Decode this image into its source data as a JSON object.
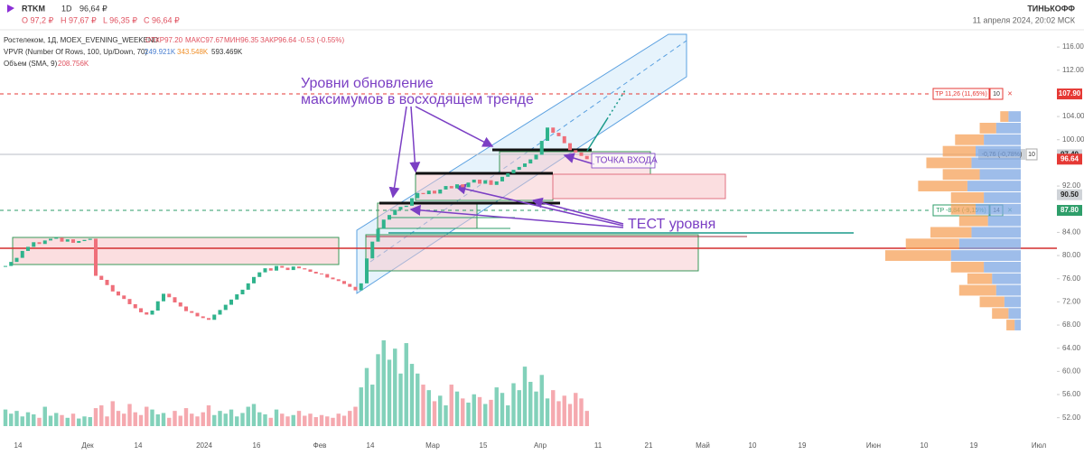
{
  "header": {
    "ticker": "RTKM",
    "interval": "1D",
    "price": "96,64 ₽",
    "open": "О 97,2 ₽",
    "high": "H 97,67 ₽",
    "low": "L 96,35 ₽",
    "close": "C 96,64 ₽",
    "broker": "ТИНЬКОФФ",
    "datetime": "11 апреля 2024, 20:02 МСК"
  },
  "legend": {
    "main": "Ростелеком, 1Д, MOEX_EVENING_WEEKEND",
    "main_open": "ОТКР97.20",
    "main_high": "МАКС97.67",
    "main_low": "МИН96.35",
    "main_close": "ЗАКР96.64",
    "main_change": "-0.53 (-0.55%)",
    "vpvr": "VPVR (Number Of Rows, 100, Up/Down, 70)",
    "vpvr_up": "249.921K",
    "vpvr_down": "343.548K",
    "vpvr_total": "593.469K",
    "volume": "Объем (SMA, 9)",
    "volume_sma": "208.756K"
  },
  "annotations": {
    "levels_line1": "Уровни обновление",
    "levels_line2": "максимумов в восходящем тренде",
    "test": "ТЕСТ уровня",
    "entry": "ТОЧКА ВХОДА"
  },
  "orders": [
    {
      "label": "TP 11,26 (11,65%)",
      "qty": "10"
    },
    {
      "label": "-0,76 (-0,78%)",
      "qty": "10"
    },
    {
      "label": "TP -8,84 (-9,15%)",
      "qty": "14"
    }
  ],
  "chart_data": {
    "type": "candlestick",
    "up_color": "#2fb38c",
    "down_color": "#ef6f7a",
    "close": [
      78.2,
      78.9,
      79.6,
      80.8,
      81.5,
      82.3,
      82.0,
      82.6,
      82.9,
      83.1,
      82.4,
      82.8,
      82.2,
      82.5,
      82.7,
      82.9,
      76.5,
      75.8,
      74.9,
      73.8,
      73.1,
      72.5,
      71.6,
      70.9,
      70.2,
      69.8,
      70.5,
      72.1,
      73.4,
      72.8,
      71.9,
      71.2,
      70.4,
      70.1,
      69.5,
      69.2,
      68.9,
      69.8,
      70.6,
      71.5,
      72.4,
      73.3,
      74.1,
      75.2,
      76.3,
      77.1,
      77.8,
      77.4,
      78.2,
      77.9,
      77.5,
      78.1,
      77.8,
      77.6,
      77.2,
      76.9,
      76.8,
      76.2,
      75.9,
      75.6,
      75.1,
      74.6,
      74.0,
      75.2,
      79.5,
      82.4,
      84.6,
      86.2,
      87.0,
      87.9,
      88.4,
      88.6,
      89.9,
      90.8,
      90.6,
      91.2,
      90.7,
      91.4,
      92.0,
      91.6,
      92.3,
      91.8,
      92.6,
      93.1,
      92.4,
      93.0,
      92.2,
      92.8,
      93.6,
      94.2,
      94.8,
      95.3,
      95.9,
      96.6,
      97.4,
      99.8,
      102.1,
      101.2,
      100.6,
      99.4,
      98.2,
      97.8,
      97.2,
      96.64
    ],
    "volume": [
      120,
      90,
      110,
      70,
      100,
      85,
      60,
      140,
      75,
      95,
      80,
      60,
      90,
      55,
      70,
      65,
      130,
      150,
      70,
      180,
      110,
      90,
      160,
      100,
      80,
      140,
      120,
      85,
      95,
      60,
      110,
      75,
      130,
      90,
      70,
      100,
      150,
      80,
      110,
      90,
      120,
      70,
      95,
      140,
      160,
      100,
      85,
      60,
      120,
      90,
      70,
      80,
      110,
      75,
      90,
      65,
      80,
      70,
      60,
      90,
      75,
      110,
      140,
      280,
      420,
      300,
      520,
      620,
      480,
      560,
      380,
      600,
      450,
      380,
      300,
      260,
      180,
      220,
      150,
      300,
      250,
      200,
      170,
      230,
      210,
      160,
      190,
      280,
      240,
      150,
      310,
      260,
      430,
      320,
      250,
      370,
      200,
      260,
      180,
      220,
      160,
      240,
      200,
      110
    ],
    "ylim": [
      49.3,
      118.2
    ],
    "yticks": [
      {
        "value": 116,
        "label": "116.00"
      },
      {
        "value": 112,
        "label": "112.00"
      },
      {
        "value": 104,
        "label": "104.00"
      },
      {
        "value": 100,
        "label": "100.00"
      },
      {
        "value": 92,
        "label": "92.00"
      },
      {
        "value": 84,
        "label": "84.00"
      },
      {
        "value": 80,
        "label": "80.00"
      },
      {
        "value": 76,
        "label": "76.00"
      },
      {
        "value": 72,
        "label": "72.00"
      },
      {
        "value": 68,
        "label": "68.00"
      },
      {
        "value": 64,
        "label": "64.00"
      },
      {
        "value": 60,
        "label": "60.00"
      },
      {
        "value": 56,
        "label": "56.00"
      },
      {
        "value": 52,
        "label": "52.00"
      }
    ],
    "x_tick_labels": [
      "14",
      "Дек",
      "14",
      "2024",
      "16",
      "Фев",
      "14",
      "Мар",
      "15",
      "Апр",
      "11",
      "21",
      "Май",
      "10",
      "19",
      "Июн",
      "10",
      "19",
      "Июл"
    ],
    "price_labels": [
      {
        "value": 107.9,
        "label": "107.90",
        "color": "#e53935"
      },
      {
        "value": 97.4,
        "label": "97.40",
        "color": "#cfd3d8"
      },
      {
        "value": 96.64,
        "label": "96.64",
        "color": "#e53935"
      },
      {
        "value": 90.5,
        "label": "90.50",
        "color": "#cfd3d8"
      },
      {
        "value": 87.8,
        "label": "87.80",
        "color": "#2e9e6a"
      }
    ],
    "vpvr": {
      "prices": [
        104,
        102,
        100,
        98,
        96,
        94,
        92,
        90,
        88,
        86,
        84,
        82,
        80,
        78,
        76,
        74,
        72,
        70,
        68
      ],
      "up": [
        30,
        60,
        90,
        110,
        120,
        100,
        130,
        90,
        110,
        80,
        120,
        150,
        170,
        90,
        70,
        60,
        40,
        30,
        15
      ],
      "down": [
        20,
        40,
        70,
        80,
        110,
        90,
        120,
        80,
        60,
        70,
        100,
        130,
        160,
        80,
        60,
        90,
        60,
        40,
        20
      ],
      "up_color": "#7da7e3",
      "down_color": "#f5a25a"
    }
  }
}
